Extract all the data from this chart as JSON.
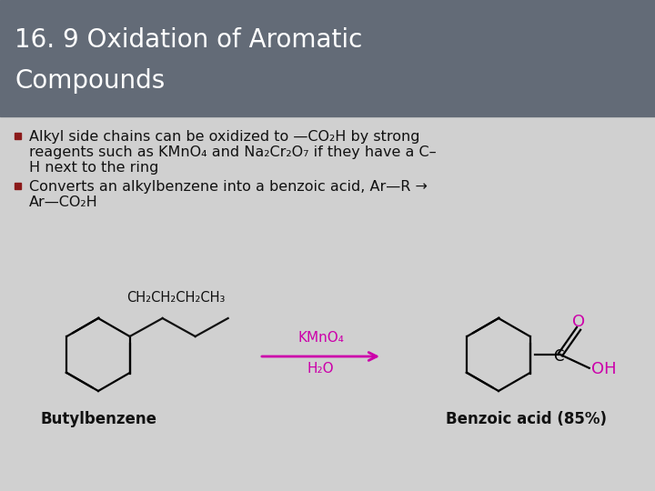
{
  "title_line1": "16. 9 Oxidation of Aromatic",
  "title_line2": "Compounds",
  "title_bg_color": "#636b77",
  "title_text_color": "#ffffff",
  "body_bg_color": "#d0d0d0",
  "bullet_color": "#8b1a1a",
  "text_color": "#111111",
  "reagent_color": "#cc00aa",
  "label_color": "#111111",
  "chem_color": "#111111",
  "butylbenzene_label": "Butylbenzene",
  "benzoic_acid_label": "Benzoic acid (85%)"
}
